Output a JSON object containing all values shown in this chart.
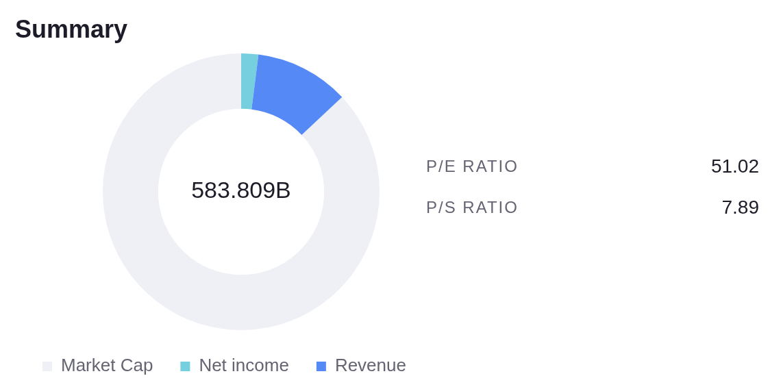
{
  "chart_data": [
    {
      "type": "donut",
      "title": "Summary",
      "categories": [
        "Market Cap",
        "Net income",
        "Revenue"
      ],
      "values": [
        87,
        2,
        11
      ],
      "colors": [
        "#eff0f6",
        "#76cfdf",
        "#5589f6"
      ],
      "legend": "bottom left",
      "annotations": [
        "583.809B"
      ]
    },
    {
      "type": "other",
      "annotations": [
        "P/E RATIO",
        "51.02",
        "P/S RATIO",
        "7.89"
      ]
    }
  ]
}
